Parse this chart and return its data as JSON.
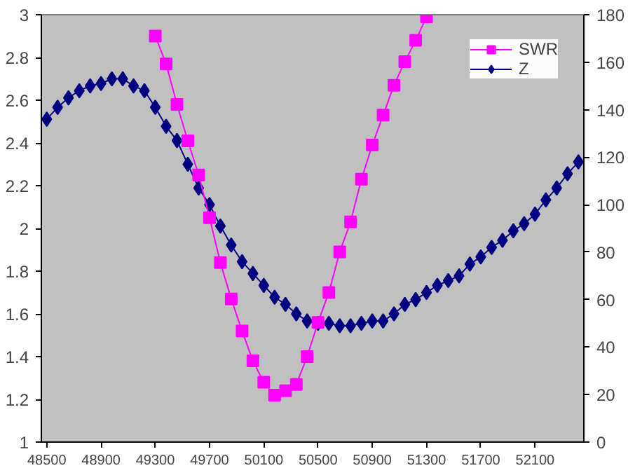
{
  "chart_data": {
    "type": "line",
    "x": [
      48500,
      48580,
      48660,
      48740,
      48820,
      48900,
      48980,
      49060,
      49140,
      49220,
      49300,
      49380,
      49460,
      49540,
      49620,
      49700,
      49780,
      49860,
      49940,
      50020,
      50100,
      50180,
      50260,
      50340,
      50420,
      50500,
      50580,
      50660,
      50740,
      50820,
      50900,
      50980,
      51060,
      51140,
      51220,
      51300,
      51380,
      51460,
      51540,
      51620,
      51700,
      51780,
      51860,
      51940,
      52020,
      52100,
      52180,
      52260,
      52340,
      52420
    ],
    "series": [
      {
        "name": "SWR",
        "color": "#ff00ff",
        "marker": "square",
        "values": [
          null,
          null,
          null,
          null,
          null,
          null,
          null,
          null,
          null,
          null,
          2.9,
          2.77,
          2.58,
          2.41,
          2.25,
          2.05,
          1.84,
          1.67,
          1.52,
          1.38,
          1.28,
          1.22,
          1.24,
          1.27,
          1.4,
          1.56,
          1.7,
          1.89,
          2.03,
          2.23,
          2.39,
          2.53,
          2.67,
          2.78,
          2.88,
          2.99,
          null,
          null,
          null,
          null,
          null,
          null,
          null,
          null,
          null,
          null,
          null,
          null,
          null,
          null
        ]
      },
      {
        "name": "Z",
        "color": "#000080",
        "marker": "diamond",
        "axis": "y2",
        "values": [
          136,
          141,
          145,
          148,
          150,
          151,
          153,
          153,
          150,
          148,
          141,
          133,
          127,
          117,
          107,
          100,
          91,
          83,
          76,
          71,
          66,
          61,
          58,
          54,
          51,
          50,
          50,
          49,
          49,
          50,
          51,
          51,
          54,
          58,
          60,
          63,
          66,
          68,
          70,
          75,
          78,
          82,
          85,
          89,
          92,
          96,
          102,
          107,
          113,
          118
        ]
      }
    ],
    "xlim": [
      48460,
      52460
    ],
    "xticks": [
      48500,
      48900,
      49300,
      49700,
      50100,
      50500,
      50900,
      51300,
      51700,
      52100
    ],
    "ylim": [
      1,
      3
    ],
    "yticks": [
      {
        "value": 1,
        "label": "1"
      },
      {
        "value": 1.2,
        "label": "1.2"
      },
      {
        "value": 1.4,
        "label": "1.4"
      },
      {
        "value": 1.6,
        "label": "1.6"
      },
      {
        "value": 1.8,
        "label": "1.8"
      },
      {
        "value": 2,
        "label": "2"
      },
      {
        "value": 2.2,
        "label": "2.2"
      },
      {
        "value": 2.4,
        "label": "2.4"
      },
      {
        "value": 2.6,
        "label": "2.6"
      },
      {
        "value": 2.8,
        "label": "2.8"
      },
      {
        "value": 3,
        "label": "3"
      }
    ],
    "y2lim": [
      0,
      180
    ],
    "y2ticks": [
      0,
      20,
      40,
      60,
      80,
      100,
      120,
      140,
      160,
      180
    ],
    "grid": false,
    "legend": "top right"
  }
}
